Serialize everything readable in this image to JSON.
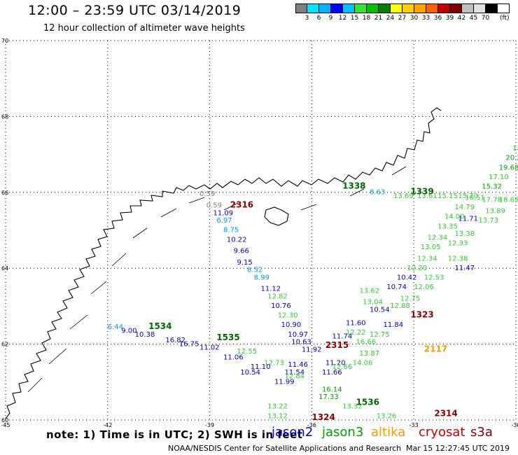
{
  "title": "12:00 – 23:59 UTC 03/14/2019",
  "subtitle": "12 hour collection of altimeter wave heights",
  "colorbar": {
    "colors": [
      "#808080",
      "#00e5ff",
      "#00b4ff",
      "#0000ff",
      "#00c0ff",
      "#33e633",
      "#00c000",
      "#008000",
      "#ffff00",
      "#ffd000",
      "#ffa500",
      "#ff6000",
      "#c00000",
      "#800000",
      "#c0c0c0",
      "#e0e0e0",
      "#000000"
    ],
    "labels": [
      "3",
      "6",
      "9",
      "12",
      "15",
      "18",
      "21",
      "24",
      "27",
      "30",
      "33",
      "36",
      "39",
      "42",
      "45",
      "70"
    ],
    "unit": "(ft)"
  },
  "axes": {
    "lon_ticks": [
      "-45",
      "-42",
      "-39",
      "-36",
      "-33",
      "-30"
    ],
    "lat_ticks": [
      "70",
      "68",
      "66",
      "64",
      "62",
      "60"
    ]
  },
  "footer": {
    "note": "note:  1) Time is in UTC;  2) SWH is in feet",
    "satellites": [
      {
        "name": "jason2",
        "color": "#0000cc"
      },
      {
        "name": "jason3",
        "color": "#00a000"
      },
      {
        "name": "altika",
        "color": "#ff9900"
      },
      {
        "name": "cryosat",
        "color": "#cc0000"
      },
      {
        "name": "s3a",
        "color": "#8b0000"
      }
    ],
    "credit": "NOAA/NESDIS Center for Satellite Applications and Research",
    "timestamp": "Mar 15 12:27:45 UTC 2019"
  },
  "observations": [
    {
      "v": "0.59",
      "c": "#808080",
      "lon": -39.3,
      "lat": 65.9
    },
    {
      "v": "0.59",
      "c": "#808080",
      "lon": -39.1,
      "lat": 65.6
    },
    {
      "v": "11.09",
      "c": "#0000cc",
      "lon": -38.9,
      "lat": 65.4
    },
    {
      "v": "6.97",
      "c": "#00a0e0",
      "lon": -38.8,
      "lat": 65.2
    },
    {
      "v": "8.75",
      "c": "#00a0e0",
      "lon": -38.6,
      "lat": 64.95
    },
    {
      "v": "10.22",
      "c": "#0000cc",
      "lon": -38.5,
      "lat": 64.7
    },
    {
      "v": "9.66",
      "c": "#0000cc",
      "lon": -38.3,
      "lat": 64.4
    },
    {
      "v": "9.15",
      "c": "#0000cc",
      "lon": -38.2,
      "lat": 64.1
    },
    {
      "v": "8.52",
      "c": "#00a0e0",
      "lon": -37.9,
      "lat": 63.9
    },
    {
      "v": "8.99",
      "c": "#00a0e0",
      "lon": -37.7,
      "lat": 63.7
    },
    {
      "v": "11.12",
      "c": "#0000cc",
      "lon": -37.5,
      "lat": 63.4
    },
    {
      "v": "12.82",
      "c": "#33cc33",
      "lon": -37.3,
      "lat": 63.2
    },
    {
      "v": "10.76",
      "c": "#0000cc",
      "lon": -37.2,
      "lat": 62.95
    },
    {
      "v": "12.30",
      "c": "#33cc33",
      "lon": -37.0,
      "lat": 62.7
    },
    {
      "v": "10.90",
      "c": "#0000cc",
      "lon": -36.9,
      "lat": 62.45
    },
    {
      "v": "10.97",
      "c": "#0000cc",
      "lon": -36.7,
      "lat": 62.2
    },
    {
      "v": "10.63",
      "c": "#0000cc",
      "lon": -36.6,
      "lat": 62.0
    },
    {
      "v": "11.92",
      "c": "#0000cc",
      "lon": -36.3,
      "lat": 61.8
    },
    {
      "v": "11.46",
      "c": "#0000cc",
      "lon": -36.7,
      "lat": 61.4
    },
    {
      "v": "11.54",
      "c": "#0000cc",
      "lon": -36.8,
      "lat": 61.2
    },
    {
      "v": "11.99",
      "c": "#0000cc",
      "lon": -37.1,
      "lat": 60.95
    },
    {
      "v": "13.22",
      "c": "#33cc33",
      "lon": -37.3,
      "lat": 60.3
    },
    {
      "v": "13.12",
      "c": "#33cc33",
      "lon": -37.3,
      "lat": 60.05
    },
    {
      "v": "11.20",
      "c": "#0000cc",
      "lon": -35.6,
      "lat": 61.45
    },
    {
      "v": "11.66",
      "c": "#0000cc",
      "lon": -35.7,
      "lat": 61.2
    },
    {
      "v": "11.74",
      "c": "#0000cc",
      "lon": -35.4,
      "lat": 62.15
    },
    {
      "v": "11.60",
      "c": "#0000cc",
      "lon": -35.0,
      "lat": 62.5
    },
    {
      "v": "10.54",
      "c": "#0000cc",
      "lon": -34.3,
      "lat": 62.85
    },
    {
      "v": "11.84",
      "c": "#0000cc",
      "lon": -33.9,
      "lat": 62.45
    },
    {
      "v": "10.74",
      "c": "#0000cc",
      "lon": -33.8,
      "lat": 63.45
    },
    {
      "v": "10.42",
      "c": "#0000cc",
      "lon": -33.5,
      "lat": 63.7
    },
    {
      "v": "11.47",
      "c": "#0000cc",
      "lon": -31.8,
      "lat": 63.95
    },
    {
      "v": "11.71",
      "c": "#0000cc",
      "lon": -31.7,
      "lat": 65.25
    },
    {
      "v": "12.22",
      "c": "#33cc33",
      "lon": -35.0,
      "lat": 62.25
    },
    {
      "v": "12.75",
      "c": "#33cc33",
      "lon": -34.3,
      "lat": 62.2
    },
    {
      "v": "13.62",
      "c": "#33cc33",
      "lon": -34.6,
      "lat": 63.35
    },
    {
      "v": "13.04",
      "c": "#33cc33",
      "lon": -34.5,
      "lat": 63.05
    },
    {
      "v": "12.88",
      "c": "#33cc33",
      "lon": -33.7,
      "lat": 62.95
    },
    {
      "v": "12.75",
      "c": "#33cc33",
      "lon": -33.4,
      "lat": 63.15
    },
    {
      "v": "12.06",
      "c": "#33cc33",
      "lon": -33.0,
      "lat": 63.45
    },
    {
      "v": "12.53",
      "c": "#33cc33",
      "lon": -32.7,
      "lat": 63.7
    },
    {
      "v": "12.20",
      "c": "#33cc33",
      "lon": -33.2,
      "lat": 63.95
    },
    {
      "v": "12.34",
      "c": "#33cc33",
      "lon": -32.9,
      "lat": 64.2
    },
    {
      "v": "13.05",
      "c": "#33cc33",
      "lon": -32.8,
      "lat": 64.5
    },
    {
      "v": "12.38",
      "c": "#33cc33",
      "lon": -32.0,
      "lat": 64.2
    },
    {
      "v": "12.33",
      "c": "#33cc33",
      "lon": -32.0,
      "lat": 64.6
    },
    {
      "v": "13.38",
      "c": "#33cc33",
      "lon": -31.8,
      "lat": 64.85
    },
    {
      "v": "12.34",
      "c": "#33cc33",
      "lon": -32.6,
      "lat": 64.75
    },
    {
      "v": "13.35",
      "c": "#33cc33",
      "lon": -32.3,
      "lat": 65.05
    },
    {
      "v": "14.00",
      "c": "#33cc33",
      "lon": -32.1,
      "lat": 65.3
    },
    {
      "v": "14.79",
      "c": "#33cc33",
      "lon": -31.8,
      "lat": 65.55
    },
    {
      "v": "13.73",
      "c": "#33cc33",
      "lon": -31.1,
      "lat": 65.2
    },
    {
      "v": "13.89",
      "c": "#33cc33",
      "lon": -30.9,
      "lat": 65.45
    },
    {
      "v": "16.51",
      "c": "#33cc33",
      "lon": -31.5,
      "lat": 65.8
    },
    {
      "v": "15.32",
      "c": "#00a000",
      "lon": -31.0,
      "lat": 66.1
    },
    {
      "v": "17.10",
      "c": "#33cc33",
      "lon": -30.8,
      "lat": 66.35
    },
    {
      "v": "19.68",
      "c": "#00a000",
      "lon": -30.5,
      "lat": 66.6
    },
    {
      "v": "20.29",
      "c": "#00a000",
      "lon": -30.3,
      "lat": 66.85
    },
    {
      "v": "18.",
      "c": "#33cc33",
      "lon": -30.1,
      "lat": 67.1
    },
    {
      "v": "8.63",
      "c": "#00a0e0",
      "lon": -34.3,
      "lat": 65.95
    },
    {
      "v": "13.69",
      "c": "#33cc33",
      "lon": -33.6,
      "lat": 65.85
    },
    {
      "v": "13.61",
      "c": "#33cc33",
      "lon": -32.9,
      "lat": 65.85
    },
    {
      "v": "15.15",
      "c": "#33cc33",
      "lon": -32.3,
      "lat": 65.85
    },
    {
      "v": "15.70",
      "c": "#33cc33",
      "lon": -31.7,
      "lat": 65.85
    },
    {
      "v": "17.78",
      "c": "#33cc33",
      "lon": -31.0,
      "lat": 65.75
    },
    {
      "v": "18.69",
      "c": "#33cc33",
      "lon": -30.5,
      "lat": 65.75
    },
    {
      "v": "12.55",
      "c": "#33cc33",
      "lon": -38.2,
      "lat": 61.75
    },
    {
      "v": "12.73",
      "c": "#33cc33",
      "lon": -37.4,
      "lat": 61.45
    },
    {
      "v": "12.84",
      "c": "#33cc33",
      "lon": -36.8,
      "lat": 61.1
    },
    {
      "v": "11.02",
      "c": "#0000cc",
      "lon": -39.3,
      "lat": 61.85
    },
    {
      "v": "11.06",
      "c": "#0000cc",
      "lon": -38.6,
      "lat": 61.6
    },
    {
      "v": "11.10",
      "c": "#0000cc",
      "lon": -37.8,
      "lat": 61.35
    },
    {
      "v": "10.54",
      "c": "#0000cc",
      "lon": -38.1,
      "lat": 61.2
    },
    {
      "v": "16.75",
      "c": "#0000cc",
      "lon": -39.9,
      "lat": 61.95
    },
    {
      "v": "16.82",
      "c": "#0000cc",
      "lon": -40.3,
      "lat": 62.05
    },
    {
      "v": "10.38",
      "c": "#0000cc",
      "lon": -41.2,
      "lat": 62.2
    },
    {
      "v": "9.00",
      "c": "#0000cc",
      "lon": -41.6,
      "lat": 62.3
    },
    {
      "v": "6.44",
      "c": "#00a0e0",
      "lon": -42.0,
      "lat": 62.4
    },
    {
      "v": "12.66",
      "c": "#33cc33",
      "lon": -35.4,
      "lat": 61.35
    },
    {
      "v": "13.87",
      "c": "#33cc33",
      "lon": -34.6,
      "lat": 61.7
    },
    {
      "v": "14.06",
      "c": "#33cc33",
      "lon": -34.8,
      "lat": 61.45
    },
    {
      "v": "16.14",
      "c": "#00a000",
      "lon": -35.7,
      "lat": 60.75
    },
    {
      "v": "17.33",
      "c": "#00a000",
      "lon": -35.8,
      "lat": 60.55
    },
    {
      "v": "16.66",
      "c": "#33cc33",
      "lon": -34.7,
      "lat": 62.0
    },
    {
      "v": "13.32",
      "c": "#33cc33",
      "lon": -35.1,
      "lat": 60.3
    },
    {
      "v": "13.26",
      "c": "#33cc33",
      "lon": -34.1,
      "lat": 60.05
    }
  ],
  "passes": [
    {
      "t": "1338",
      "c": "#006600",
      "lon": -35.1,
      "lat": 66.1
    },
    {
      "t": "1339",
      "c": "#006600",
      "lon": -33.1,
      "lat": 65.95
    },
    {
      "t": "2316",
      "c": "#880000",
      "lon": -38.4,
      "lat": 65.6
    },
    {
      "t": "1534",
      "c": "#006600",
      "lon": -40.8,
      "lat": 62.4
    },
    {
      "t": "1535",
      "c": "#006600",
      "lon": -38.8,
      "lat": 62.1
    },
    {
      "t": "1323",
      "c": "#880000",
      "lon": -33.1,
      "lat": 62.7
    },
    {
      "t": "2315",
      "c": "#880000",
      "lon": -35.6,
      "lat": 61.9
    },
    {
      "t": "2117",
      "c": "#ff9900",
      "lon": -32.7,
      "lat": 61.8
    },
    {
      "t": "1536",
      "c": "#006600",
      "lon": -34.7,
      "lat": 60.4
    },
    {
      "t": "2314",
      "c": "#880000",
      "lon": -32.4,
      "lat": 60.1
    },
    {
      "t": "1324",
      "c": "#880000",
      "lon": -36.0,
      "lat": 60.0
    },
    {
      "t": "1.",
      "c": "#880000",
      "lon": -29.85,
      "lat": 66.1
    },
    {
      "t": "21",
      "c": "#ff9900",
      "lon": -29.9,
      "lat": 65.9
    },
    {
      "t": "2",
      "c": "#ff9900",
      "lon": -29.85,
      "lat": 65.2
    }
  ]
}
